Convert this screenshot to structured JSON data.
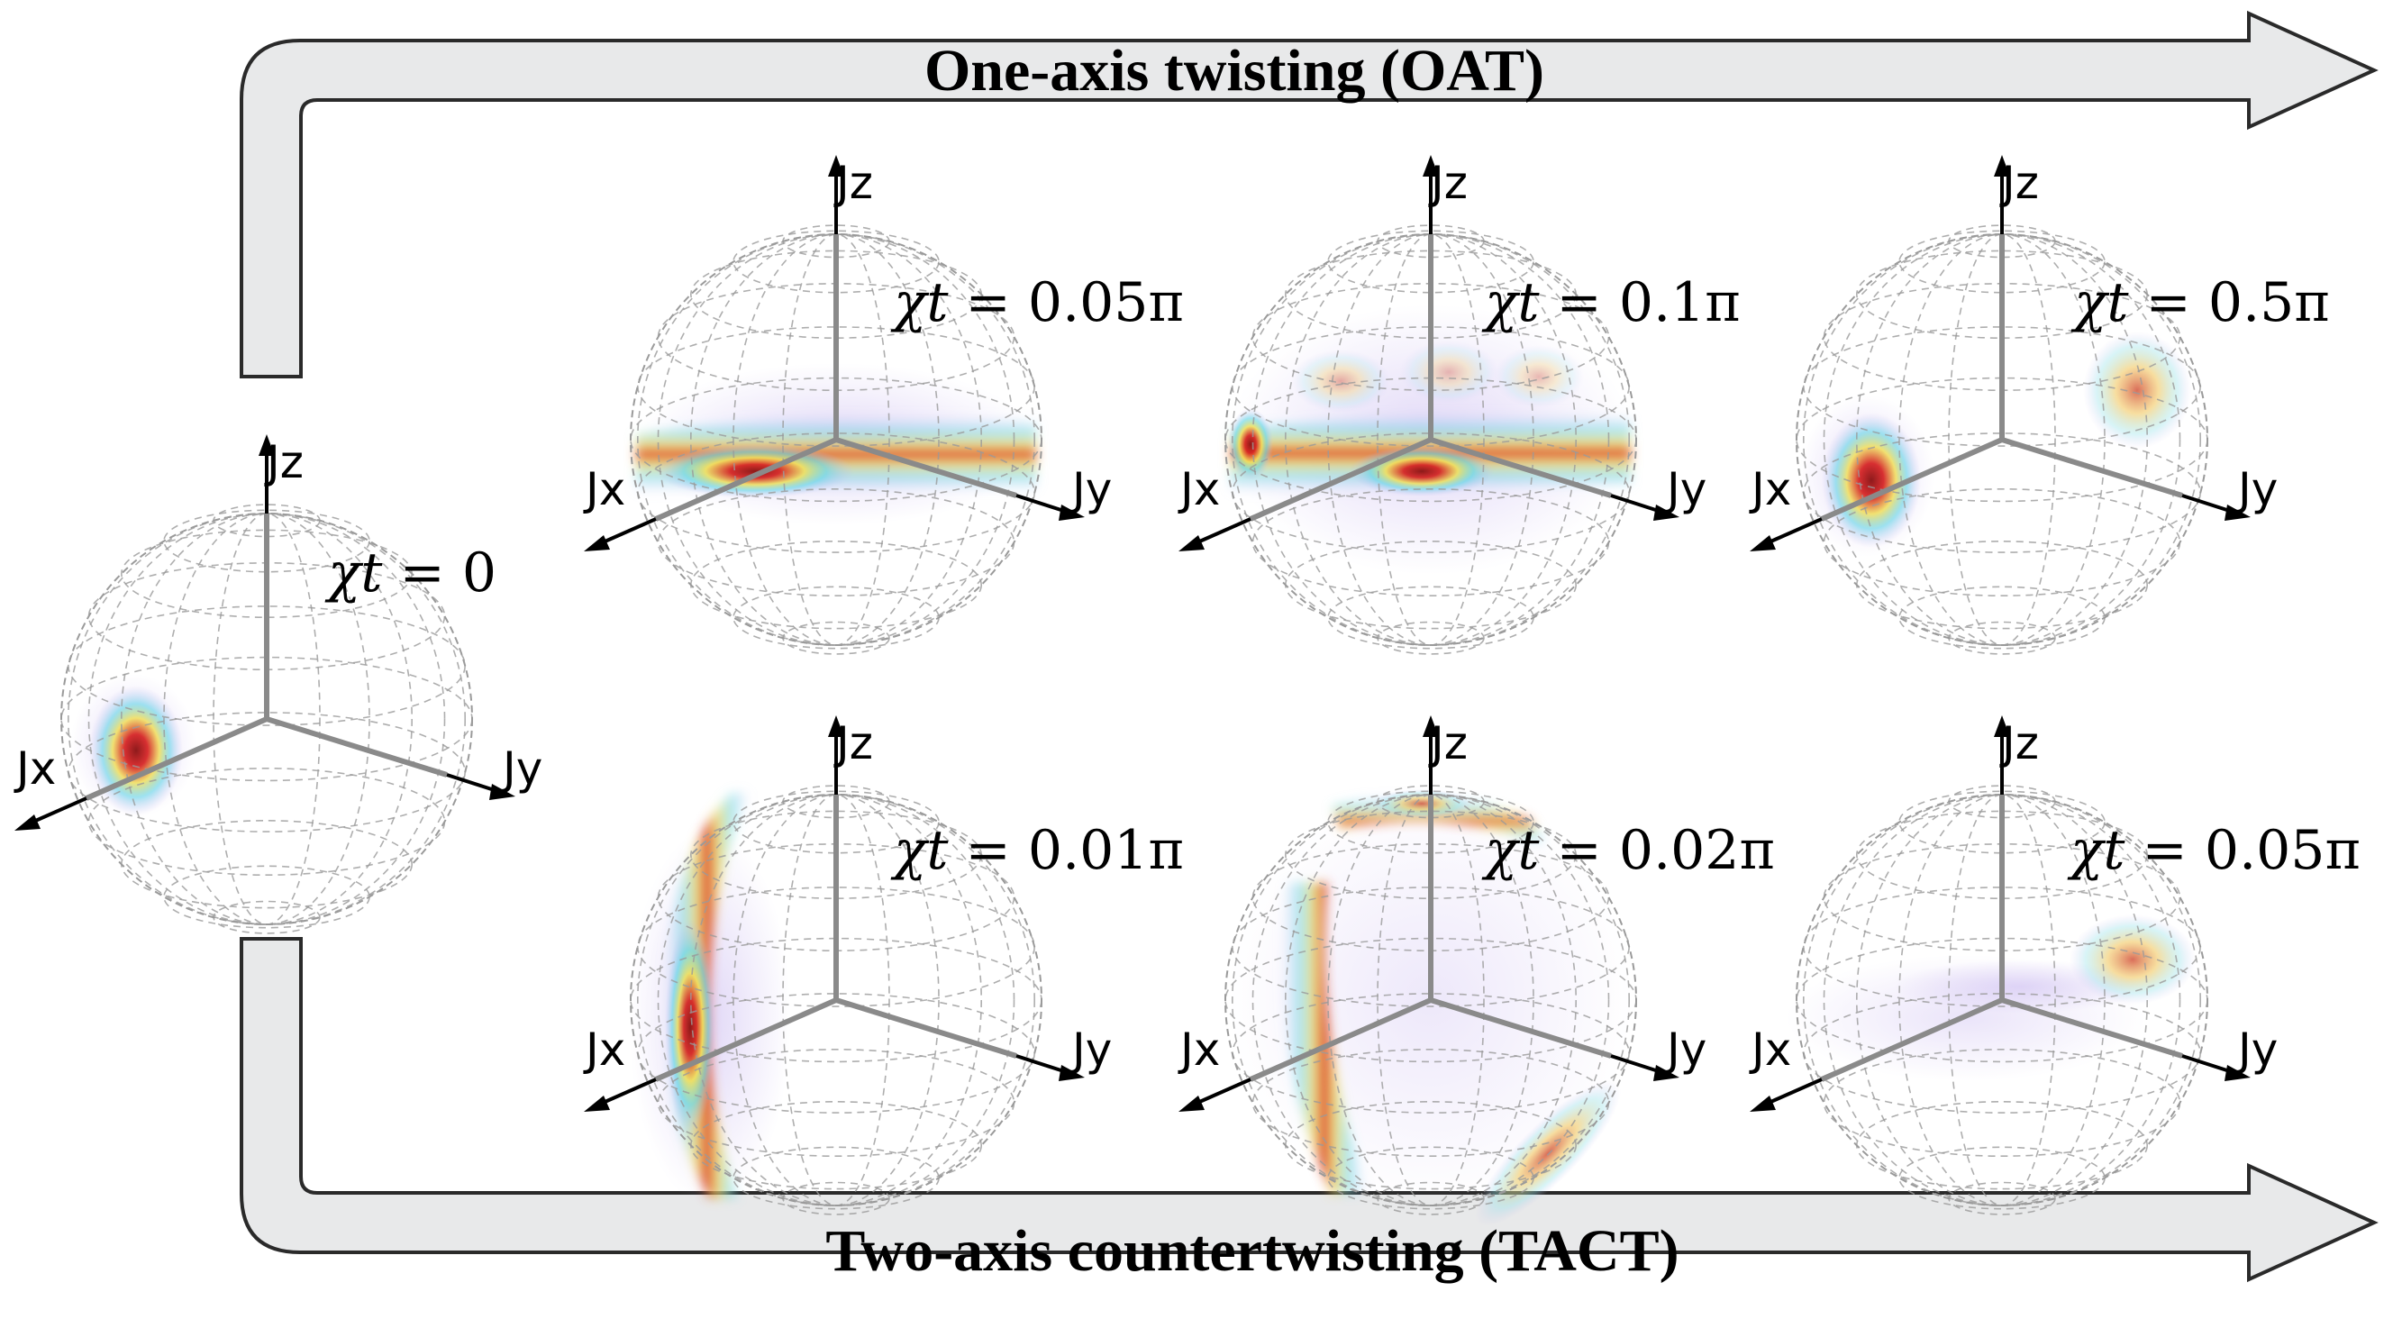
{
  "arrows": {
    "oat": {
      "label": "One-axis twisting (OAT)"
    },
    "tact": {
      "label": "Two-axis countertwisting (TACT)"
    }
  },
  "axes": {
    "x": "Jx",
    "y": "Jy",
    "z": "Jz"
  },
  "colors": {
    "arrow_fill": "#e8e9ea",
    "arrow_stroke": "#2a2a2a",
    "grid": "#9a9a9a",
    "axis_inner": "#8a8a8a",
    "axis_outer": "#000000",
    "heat_low": "#c9b8f0",
    "heat_mid": "#62d6e8",
    "heat_high": "#f2e05a",
    "heat_peak": "#d62020"
  },
  "spheres": [
    {
      "id": "initial",
      "symbol": "χt",
      "value": "0"
    },
    {
      "id": "oat-1",
      "symbol": "χt",
      "value": "0.05π"
    },
    {
      "id": "oat-2",
      "symbol": "χt",
      "value": "0.1π"
    },
    {
      "id": "oat-3",
      "symbol": "χt",
      "value": "0.5π"
    },
    {
      "id": "tact-1",
      "symbol": "χt",
      "value": "0.01π"
    },
    {
      "id": "tact-2",
      "symbol": "χt",
      "value": "0.02π"
    },
    {
      "id": "tact-3",
      "symbol": "χt",
      "value": "0.05π"
    }
  ]
}
